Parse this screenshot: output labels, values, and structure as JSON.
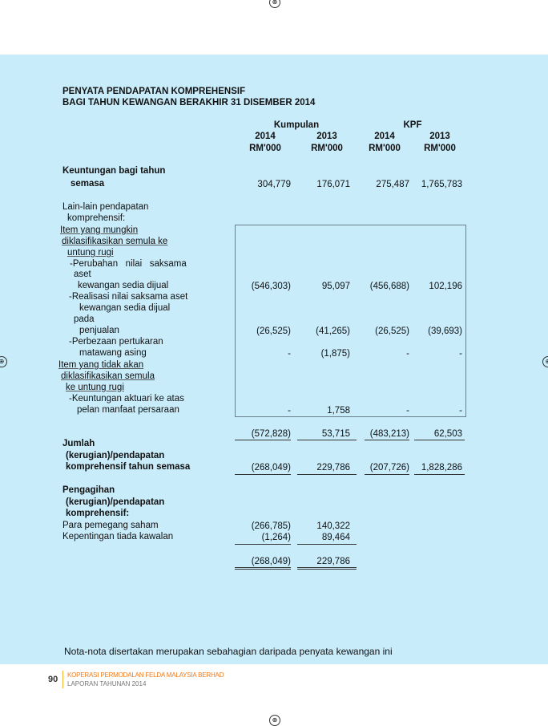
{
  "title_line1": "PENYATA PENDAPATAN KOMPREHENSIF",
  "title_line2": "BAGI TAHUN KEWANGAN BERAKHIR 31 DISEMBER 2014",
  "groups": [
    "Kumpulan",
    "KPF"
  ],
  "years": [
    "2014",
    "2013",
    "2014",
    "2013"
  ],
  "unit": [
    "RM'000",
    "RM'000",
    "RM'000",
    "RM'000"
  ],
  "rows": [
    {
      "label": "Keuntungan bagi tahun",
      "bold": true
    },
    {
      "label": "semasa",
      "bold": true,
      "values": [
        "304,779",
        "176,071",
        "275,487",
        "1,765,783"
      ]
    },
    {
      "label": "Lain-lain pendapatan"
    },
    {
      "label": "komprehensif:"
    },
    {
      "label": "Item yang mungkin",
      "underline": true
    },
    {
      "label": "diklasifikasikan semula ke",
      "underline": true
    },
    {
      "label": "untung rugi",
      "underline": true
    },
    {
      "label": "-Perubahan   nilai   saksama"
    },
    {
      "label": "aset"
    },
    {
      "label": "kewangan sedia dijual",
      "values": [
        "(546,303)",
        "95,097",
        "(456,688)",
        "102,196"
      ]
    },
    {
      "label": "-Realisasi nilai saksama aset"
    },
    {
      "label": "kewangan sedia dijual"
    },
    {
      "label": "pada"
    },
    {
      "label": "penjualan",
      "values": [
        "(26,525)",
        "(41,265)",
        "(26,525)",
        "(39,693)"
      ]
    },
    {
      "label": "-Perbezaan pertukaran"
    },
    {
      "label": "matawang asing",
      "values": [
        "-",
        "(1,875)",
        "-",
        "-"
      ]
    },
    {
      "label": "Item yang tidak akan",
      "underline": true
    },
    {
      "label": "diklasifikasikan semula",
      "underline": true
    },
    {
      "label": "ke untung rugi",
      "underline": true
    },
    {
      "label": "-Keuntungan aktuari ke atas"
    },
    {
      "label": "pelan manfaat persaraan",
      "values": [
        "-",
        "1,758",
        "-",
        "-"
      ]
    },
    {
      "label": "",
      "values": [
        "(572,828)",
        "53,715",
        "(483,213)",
        "62,503"
      ]
    },
    {
      "label": "Jumlah",
      "bold": true
    },
    {
      "label": "(kerugian)/pendapatan",
      "bold": true
    },
    {
      "label": "komprehensif tahun semasa",
      "bold": true,
      "values": [
        "(268,049)",
        "229,786",
        "(207,726)",
        "1,828,286"
      ]
    },
    {
      "label": "Pengagihan",
      "bold": true
    },
    {
      "label": "(kerugian)/pendapatan",
      "bold": true
    },
    {
      "label": "komprehensif:",
      "bold": true
    },
    {
      "label": "Para pemegang saham",
      "values": [
        "(266,785)",
        "140,322"
      ]
    },
    {
      "label": "Kepentingan tiada kawalan",
      "values": [
        "(1,264)",
        "89,464"
      ]
    },
    {
      "label": "",
      "values": [
        "(268,049)",
        "229,786"
      ]
    }
  ],
  "note": "Nota-nota disertakan merupakan sebahagian daripada penyata kewangan ini",
  "footer": {
    "page_number": "90",
    "org": "KOPERASI PERMODALAN FELDA MALAYSIA BERHAD",
    "report": "LAPORAN TAHUNAN 2014",
    "accent_color": "#f07a1a"
  },
  "panel_color": "#c9ecfb"
}
